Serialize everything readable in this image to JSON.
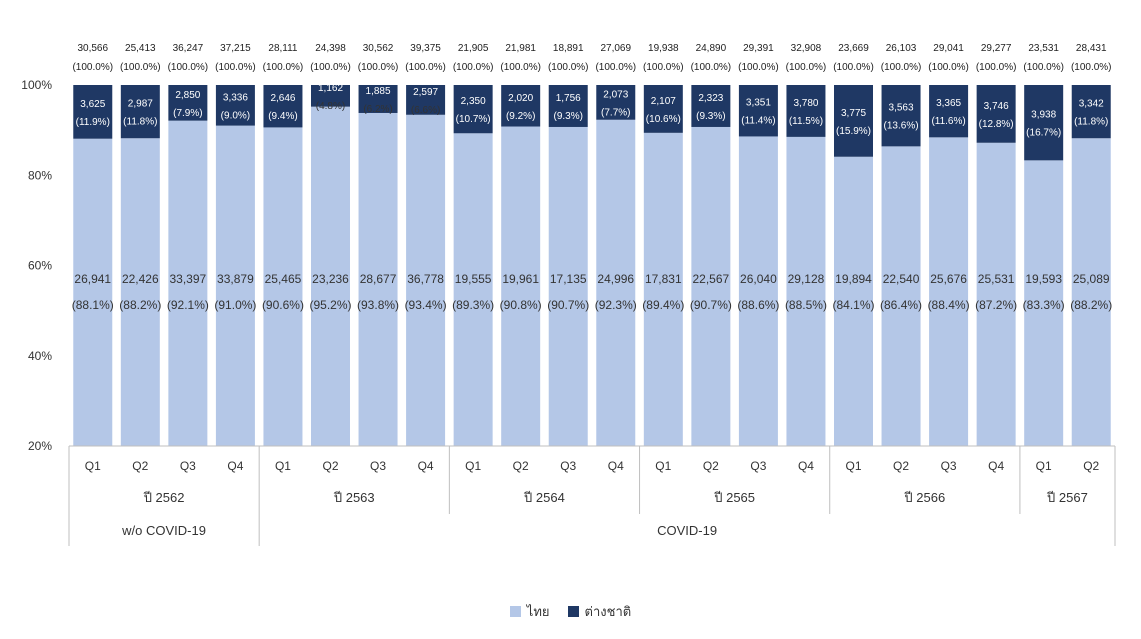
{
  "chart_data": {
    "type": "bar",
    "stacked": "percent",
    "categories": [
      "Q1",
      "Q2",
      "Q3",
      "Q4",
      "Q1",
      "Q2",
      "Q3",
      "Q4",
      "Q1",
      "Q2",
      "Q3",
      "Q4",
      "Q1",
      "Q2",
      "Q3",
      "Q4",
      "Q1",
      "Q2",
      "Q3",
      "Q4",
      "Q1",
      "Q2"
    ],
    "years": [
      {
        "label": "ปี 2562",
        "quarters": 4
      },
      {
        "label": "ปี 2563",
        "quarters": 4
      },
      {
        "label": "ปี 2564",
        "quarters": 4
      },
      {
        "label": "ปี 2565",
        "quarters": 4
      },
      {
        "label": "ปี 2566",
        "quarters": 4
      },
      {
        "label": "ปี 2567",
        "quarters": 2
      }
    ],
    "periods": [
      {
        "label": "w/o COVID-19",
        "quarters": 4
      },
      {
        "label": "COVID-19",
        "quarters": 18
      }
    ],
    "totals": [
      30566,
      25413,
      36247,
      37215,
      28111,
      24398,
      30562,
      39375,
      21905,
      21981,
      18891,
      27069,
      19938,
      24890,
      29391,
      32908,
      23669,
      26103,
      29041,
      29277,
      23531,
      28431
    ],
    "total_labels": [
      "30,566",
      "25,413",
      "36,247",
      "37,215",
      "28,111",
      "24,398",
      "30,562",
      "39,375",
      "21,905",
      "21,981",
      "18,891",
      "27,069",
      "19,938",
      "24,890",
      "29,391",
      "32,908",
      "23,669",
      "26,103",
      "29,041",
      "29,277",
      "23,531",
      "28,431"
    ],
    "total_pct_label": "(100.0%)",
    "series": [
      {
        "name": "ไทย",
        "color": "#b4c7e7",
        "values": [
          26941,
          22426,
          33397,
          33879,
          25465,
          23236,
          28677,
          36778,
          19555,
          19961,
          17135,
          24996,
          17831,
          22567,
          26040,
          29128,
          19894,
          22540,
          25676,
          25531,
          19593,
          25089
        ],
        "value_labels": [
          "26,941",
          "22,426",
          "33,397",
          "33,879",
          "25,465",
          "23,236",
          "28,677",
          "36,778",
          "19,555",
          "19,961",
          "17,135",
          "24,996",
          "17,831",
          "22,567",
          "26,040",
          "29,128",
          "19,894",
          "22,540",
          "25,676",
          "25,531",
          "19,593",
          "25,089"
        ],
        "percents": [
          88.1,
          88.2,
          92.1,
          91.0,
          90.6,
          95.2,
          93.8,
          93.4,
          89.3,
          90.8,
          90.7,
          92.3,
          89.4,
          90.7,
          88.6,
          88.5,
          84.1,
          86.4,
          88.4,
          87.2,
          83.3,
          88.2
        ],
        "pct_labels": [
          "(88.1%)",
          "(88.2%)",
          "(92.1%)",
          "(91.0%)",
          "(90.6%)",
          "(95.2%)",
          "(93.8%)",
          "(93.4%)",
          "(89.3%)",
          "(90.8%)",
          "(90.7%)",
          "(92.3%)",
          "(89.4%)",
          "(90.7%)",
          "(88.6%)",
          "(88.5%)",
          "(84.1%)",
          "(86.4%)",
          "(88.4%)",
          "(87.2%)",
          "(83.3%)",
          "(88.2%)"
        ]
      },
      {
        "name": "ต่างชาติ",
        "color": "#1f3864",
        "values": [
          3625,
          2987,
          2850,
          3336,
          2646,
          1162,
          1885,
          2597,
          2350,
          2020,
          1756,
          2073,
          2107,
          2323,
          3351,
          3780,
          3775,
          3563,
          3365,
          3746,
          3938,
          3342
        ],
        "value_labels": [
          "3,625",
          "2,987",
          "2,850",
          "3,336",
          "2,646",
          "1,162",
          "1,885",
          "2,597",
          "2,350",
          "2,020",
          "1,756",
          "2,073",
          "2,107",
          "2,323",
          "3,351",
          "3,780",
          "3,775",
          "3,563",
          "3,365",
          "3,746",
          "3,938",
          "3,342"
        ],
        "percents": [
          11.9,
          11.8,
          7.9,
          9.0,
          9.4,
          4.8,
          6.2,
          6.6,
          10.7,
          9.2,
          9.3,
          7.7,
          10.6,
          9.3,
          11.4,
          11.5,
          15.9,
          13.6,
          11.6,
          12.8,
          16.7,
          11.8
        ],
        "pct_labels": [
          "(11.9%)",
          "(11.8%)",
          "(7.9%)",
          "(9.0%)",
          "(9.4%)",
          "(4.8%)",
          "(6.2%)",
          "(6.6%)",
          "(10.7%)",
          "(9.2%)",
          "(9.3%)",
          "(7.7%)",
          "(10.6%)",
          "(9.3%)",
          "(11.4%)",
          "(11.5%)",
          "(15.9%)",
          "(13.6%)",
          "(11.6%)",
          "(12.8%)",
          "(16.7%)",
          "(11.8%)"
        ]
      }
    ],
    "y_ticks": [
      20,
      40,
      60,
      80,
      100
    ],
    "y_tick_labels": [
      "20%",
      "40%",
      "60%",
      "80%",
      "100%"
    ],
    "ylim": [
      20,
      100
    ],
    "grid": false,
    "legend_position": "bottom-center"
  }
}
